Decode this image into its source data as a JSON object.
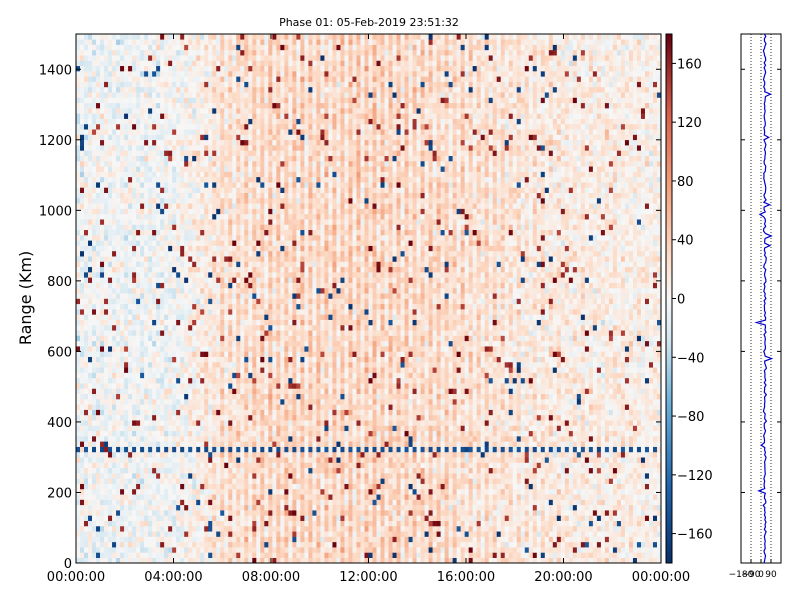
{
  "chart_data": [
    {
      "type": "heatmap",
      "title": "Phase 01: 05-Feb-2019 23:51:32",
      "xlabel": "",
      "ylabel": "Range (Km)",
      "x_ticks": [
        "00:00:00",
        "04:00:00",
        "08:00:00",
        "12:00:00",
        "16:00:00",
        "20:00:00",
        "00:00:00"
      ],
      "x_range_hours": [
        0,
        24
      ],
      "y_ticks": [
        0,
        200,
        400,
        600,
        800,
        1000,
        1200,
        1400
      ],
      "ylim": [
        0,
        1500
      ],
      "value_range": [
        -180,
        180
      ],
      "colormap": "RdBu_r",
      "colorbar_ticks": [
        160,
        120,
        80,
        40,
        0,
        -40,
        -80,
        -120,
        -160
      ],
      "colors": {
        "low": "#08306b",
        "mid": "#f7f7f7",
        "high": "#67000d"
      },
      "column_mean_profile": [
        {
          "hour": 0,
          "phase": -8
        },
        {
          "hour": 2,
          "phase": -6
        },
        {
          "hour": 4,
          "phase": -4
        },
        {
          "hour": 5,
          "phase": 10
        },
        {
          "hour": 6,
          "phase": 30
        },
        {
          "hour": 8,
          "phase": 42
        },
        {
          "hour": 10,
          "phase": 40
        },
        {
          "hour": 12,
          "phase": 45
        },
        {
          "hour": 14,
          "phase": 40
        },
        {
          "hour": 16,
          "phase": 35
        },
        {
          "hour": 18,
          "phase": 25
        },
        {
          "hour": 20,
          "phase": 18
        },
        {
          "hour": 22,
          "phase": 15
        },
        {
          "hour": 24,
          "phase": 12
        }
      ],
      "notable_band_km": 320
    },
    {
      "type": "line",
      "title": "",
      "xlabel": "",
      "ylabel": "",
      "x_ticks": [
        "−180",
        "−90",
        "0",
        "90"
      ],
      "xlim": [
        -180,
        180
      ],
      "ylim": [
        0,
        1500
      ],
      "line_color": "#0000cc",
      "grid": "vertical dotted"
    }
  ]
}
